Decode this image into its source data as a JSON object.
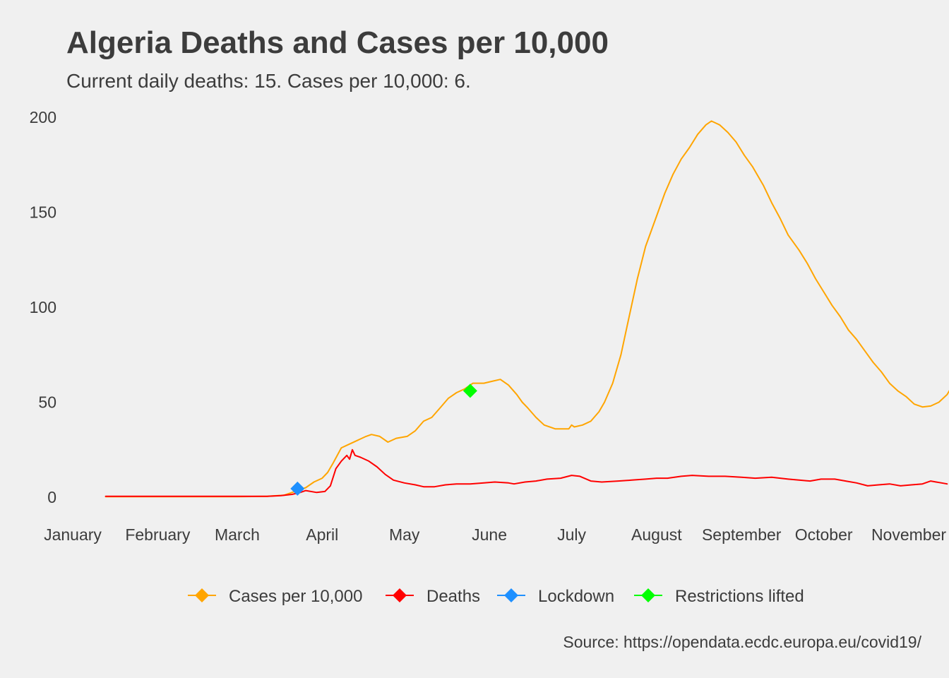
{
  "chart_data": {
    "type": "line",
    "title": "Algeria Deaths and Cases per 10,000",
    "subtitle": "Current daily deaths: 15. Cases per 10,000: 6.",
    "caption": "Source: https://opendata.ecdc.europa.eu/covid19/",
    "xlabel": "",
    "ylabel": "",
    "x_axis": {
      "type": "date",
      "range": [
        "2019-12-31",
        "2020-11-09"
      ],
      "tick_dates": [
        "2020-01-01",
        "2020-02-01",
        "2020-03-01",
        "2020-04-01",
        "2020-05-01",
        "2020-06-01",
        "2020-07-01",
        "2020-08-01",
        "2020-09-01",
        "2020-10-01",
        "2020-11-01"
      ],
      "tick_labels": [
        "January",
        "February",
        "March",
        "April",
        "May",
        "June",
        "July",
        "August",
        "September",
        "October",
        "November"
      ]
    },
    "y_axis": {
      "range": [
        -10,
        210
      ],
      "ticks": [
        0,
        50,
        100,
        150,
        200
      ],
      "tick_labels": [
        "0",
        "50",
        "100",
        "150",
        "200"
      ]
    },
    "grid": false,
    "legend_position": "bottom",
    "series": [
      {
        "name": "Cases per 10,000",
        "color": "#FFA500",
        "points": [
          [
            "2020-01-13",
            0.3
          ],
          [
            "2020-02-01",
            0.3
          ],
          [
            "2020-03-01",
            0.3
          ],
          [
            "2020-03-12",
            0.5
          ],
          [
            "2020-03-18",
            1
          ],
          [
            "2020-03-22",
            3
          ],
          [
            "2020-03-26",
            5
          ],
          [
            "2020-03-29",
            8
          ],
          [
            "2020-04-01",
            10
          ],
          [
            "2020-04-03",
            13
          ],
          [
            "2020-04-05",
            18
          ],
          [
            "2020-04-08",
            26
          ],
          [
            "2020-04-11",
            28
          ],
          [
            "2020-04-14",
            30
          ],
          [
            "2020-04-17",
            32
          ],
          [
            "2020-04-19",
            33
          ],
          [
            "2020-04-22",
            32
          ],
          [
            "2020-04-25",
            29
          ],
          [
            "2020-04-28",
            31
          ],
          [
            "2020-05-02",
            32
          ],
          [
            "2020-05-05",
            35
          ],
          [
            "2020-05-08",
            40
          ],
          [
            "2020-05-11",
            42
          ],
          [
            "2020-05-14",
            47
          ],
          [
            "2020-05-17",
            52
          ],
          [
            "2020-05-20",
            55
          ],
          [
            "2020-05-23",
            57
          ],
          [
            "2020-05-26",
            60
          ],
          [
            "2020-05-30",
            60
          ],
          [
            "2020-06-02",
            61
          ],
          [
            "2020-06-05",
            62
          ],
          [
            "2020-06-08",
            59
          ],
          [
            "2020-06-11",
            54
          ],
          [
            "2020-06-13",
            50
          ],
          [
            "2020-06-15",
            47
          ],
          [
            "2020-06-18",
            42
          ],
          [
            "2020-06-21",
            38
          ],
          [
            "2020-06-25",
            36
          ],
          [
            "2020-06-28",
            36
          ],
          [
            "2020-06-30",
            36
          ],
          [
            "2020-07-01",
            38
          ],
          [
            "2020-07-02",
            37
          ],
          [
            "2020-07-05",
            38
          ],
          [
            "2020-07-08",
            40
          ],
          [
            "2020-07-11",
            45
          ],
          [
            "2020-07-13",
            50
          ],
          [
            "2020-07-16",
            60
          ],
          [
            "2020-07-19",
            75
          ],
          [
            "2020-07-22",
            95
          ],
          [
            "2020-07-25",
            115
          ],
          [
            "2020-07-28",
            132
          ],
          [
            "2020-08-01",
            148
          ],
          [
            "2020-08-04",
            160
          ],
          [
            "2020-08-07",
            170
          ],
          [
            "2020-08-10",
            178
          ],
          [
            "2020-08-13",
            184
          ],
          [
            "2020-08-16",
            191
          ],
          [
            "2020-08-19",
            196
          ],
          [
            "2020-08-21",
            198
          ],
          [
            "2020-08-24",
            196
          ],
          [
            "2020-08-27",
            192
          ],
          [
            "2020-08-30",
            187
          ],
          [
            "2020-09-02",
            180
          ],
          [
            "2020-09-05",
            174
          ],
          [
            "2020-09-09",
            164
          ],
          [
            "2020-09-12",
            155
          ],
          [
            "2020-09-15",
            147
          ],
          [
            "2020-09-18",
            138
          ],
          [
            "2020-09-22",
            130
          ],
          [
            "2020-09-25",
            123
          ],
          [
            "2020-09-28",
            115
          ],
          [
            "2020-10-01",
            108
          ],
          [
            "2020-10-04",
            101
          ],
          [
            "2020-10-07",
            95
          ],
          [
            "2020-10-10",
            88
          ],
          [
            "2020-10-13",
            83
          ],
          [
            "2020-10-16",
            77
          ],
          [
            "2020-10-19",
            71
          ],
          [
            "2020-10-22",
            66
          ],
          [
            "2020-10-25",
            60
          ],
          [
            "2020-10-28",
            56
          ],
          [
            "2020-10-31",
            53
          ],
          [
            "2020-11-03",
            49
          ],
          [
            "2020-11-06",
            47.5
          ],
          [
            "2020-11-09",
            48
          ],
          [
            "2020-11-12",
            50
          ],
          [
            "2020-11-15",
            54
          ],
          [
            "2020-11-17",
            59
          ]
        ]
      },
      {
        "name": "Deaths",
        "color": "#FF0000",
        "points": [
          [
            "2020-01-13",
            0.5
          ],
          [
            "2020-02-01",
            0.5
          ],
          [
            "2020-03-01",
            0.5
          ],
          [
            "2020-03-12",
            0.5
          ],
          [
            "2020-03-17",
            0.8
          ],
          [
            "2020-03-21",
            1.5
          ],
          [
            "2020-03-24",
            2.5
          ],
          [
            "2020-03-26",
            3.5
          ],
          [
            "2020-03-30",
            2.5
          ],
          [
            "2020-04-02",
            3
          ],
          [
            "2020-04-04",
            6
          ],
          [
            "2020-04-06",
            15
          ],
          [
            "2020-04-08",
            19
          ],
          [
            "2020-04-10",
            22
          ],
          [
            "2020-04-11",
            20
          ],
          [
            "2020-04-12",
            25
          ],
          [
            "2020-04-13",
            22
          ],
          [
            "2020-04-15",
            21
          ],
          [
            "2020-04-18",
            19
          ],
          [
            "2020-04-21",
            16
          ],
          [
            "2020-04-24",
            12
          ],
          [
            "2020-04-27",
            9
          ],
          [
            "2020-05-01",
            7.5
          ],
          [
            "2020-05-05",
            6.5
          ],
          [
            "2020-05-08",
            5.5
          ],
          [
            "2020-05-12",
            5.5
          ],
          [
            "2020-05-16",
            6.5
          ],
          [
            "2020-05-20",
            7
          ],
          [
            "2020-05-25",
            7
          ],
          [
            "2020-05-30",
            7.5
          ],
          [
            "2020-06-03",
            8
          ],
          [
            "2020-06-08",
            7.5
          ],
          [
            "2020-06-10",
            7
          ],
          [
            "2020-06-14",
            8
          ],
          [
            "2020-06-18",
            8.5
          ],
          [
            "2020-06-22",
            9.5
          ],
          [
            "2020-06-27",
            10
          ],
          [
            "2020-07-01",
            11.5
          ],
          [
            "2020-07-04",
            11
          ],
          [
            "2020-07-08",
            8.5
          ],
          [
            "2020-07-12",
            8
          ],
          [
            "2020-07-18",
            8.5
          ],
          [
            "2020-07-23",
            9
          ],
          [
            "2020-07-28",
            9.5
          ],
          [
            "2020-08-01",
            10
          ],
          [
            "2020-08-05",
            10
          ],
          [
            "2020-08-10",
            11
          ],
          [
            "2020-08-14",
            11.5
          ],
          [
            "2020-08-20",
            11
          ],
          [
            "2020-08-26",
            11
          ],
          [
            "2020-09-01",
            10.5
          ],
          [
            "2020-09-06",
            10
          ],
          [
            "2020-09-12",
            10.5
          ],
          [
            "2020-09-18",
            9.5
          ],
          [
            "2020-09-22",
            9
          ],
          [
            "2020-09-26",
            8.5
          ],
          [
            "2020-09-30",
            9.5
          ],
          [
            "2020-10-05",
            9.5
          ],
          [
            "2020-10-09",
            8.5
          ],
          [
            "2020-10-13",
            7.5
          ],
          [
            "2020-10-17",
            6
          ],
          [
            "2020-10-21",
            6.5
          ],
          [
            "2020-10-25",
            7
          ],
          [
            "2020-10-29",
            6
          ],
          [
            "2020-11-02",
            6.5
          ],
          [
            "2020-11-06",
            7
          ],
          [
            "2020-11-09",
            8.5
          ],
          [
            "2020-11-11",
            8
          ],
          [
            "2020-11-13",
            7.5
          ],
          [
            "2020-11-15",
            7
          ]
        ]
      }
    ],
    "markers": [
      {
        "name": "Lockdown",
        "color": "#1E90FF",
        "date": "2020-03-23",
        "y": 4.5
      },
      {
        "name": "Restrictions lifted",
        "color": "#00FF00",
        "date": "2020-05-25",
        "y": 56
      }
    ],
    "legend": [
      {
        "label": "Cases per 10,000",
        "color": "#FFA500"
      },
      {
        "label": "Deaths",
        "color": "#FF0000"
      },
      {
        "label": "Lockdown",
        "color": "#1E90FF"
      },
      {
        "label": "Restrictions lifted",
        "color": "#00FF00"
      }
    ]
  }
}
